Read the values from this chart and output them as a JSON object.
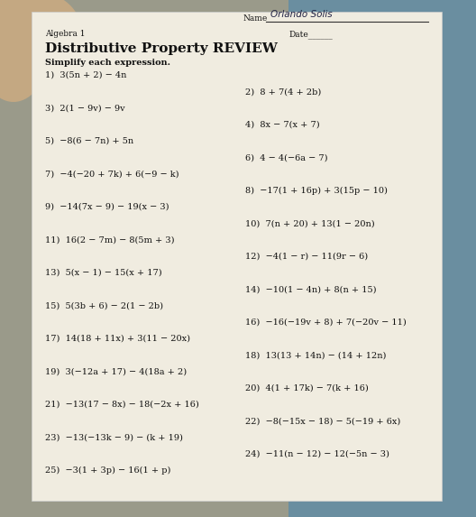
{
  "bg_outer": "#a0a090",
  "bg_right": "#5a8090",
  "paper_color": "#f0ece0",
  "hand_color": "#c8a888",
  "name_prefix": "Name",
  "name_written": "Orlando Solis",
  "algebra_label": "Algebra 1",
  "date_label": "Date______",
  "title": "Distributive Property REVIEW",
  "subtitle": "Simplify each expression.",
  "problems_left": [
    "1)  3(5n + 2) − 4n",
    "3)  2(1 − 9v) − 9v",
    "5)  −8(6 − 7n) + 5n",
    "7)  −4(−20 + 7k) + 6(−9 − k)",
    "9)  −14(7x − 9) − 19(x − 3)",
    "11)  16(2 − 7m) − 8(5m + 3)",
    "13)  5(x − 1) − 15(x + 17)",
    "15)  5(3b + 6) − 2(1 − 2b)",
    "17)  14(18 + 11x) + 3(11 − 20x)",
    "19)  3(−12a + 17) − 4(18a + 2)",
    "21)  −13(17 − 8x) − 18(−2x + 16)",
    "23)  −13(−13k − 9) − (k + 19)",
    "25)  −3(1 + 3p) − 16(1 + p)"
  ],
  "problems_right": [
    "2)  8 + 7(4 + 2b)",
    "4)  8x − 7(x + 7)",
    "6)  4 − 4(−6a − 7)",
    "8)  −17(1 + 16p) + 3(15p − 10)",
    "10)  7(n + 20) + 13(1 − 20n)",
    "12)  −4(1 − r) − 11(9r − 6)",
    "14)  −10(1 − 4n) + 8(n + 15)",
    "16)  −16(−19v + 8) + 7(−20v − 11)",
    "18)  13(13 + 14n) − (14 + 12n)",
    "20)  4(1 + 17k) − 7(k + 16)",
    "22)  −8(−15x − 18) − 5(−19 + 6x)",
    "24)  −11(n − 12) − 12(−5n − 3)"
  ]
}
